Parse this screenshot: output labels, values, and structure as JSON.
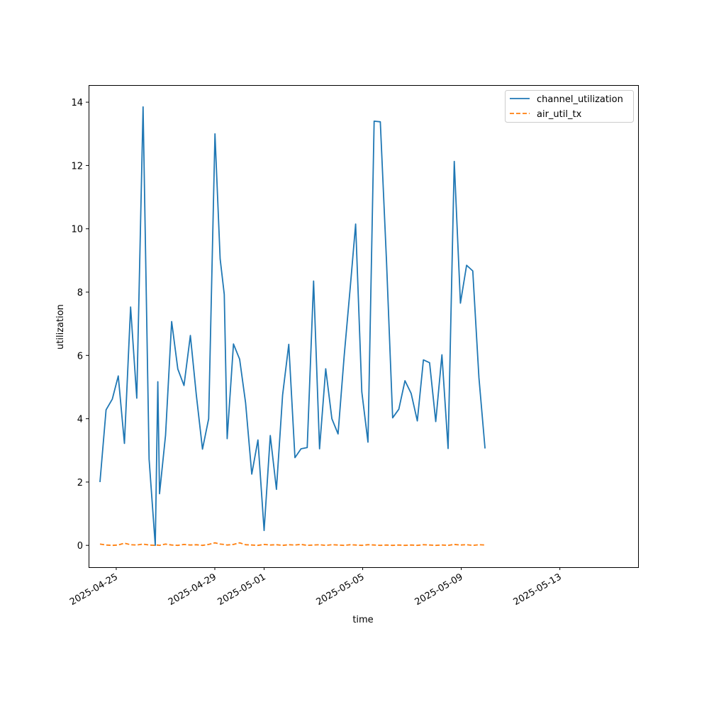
{
  "chart_data": {
    "type": "line",
    "xlabel": "time",
    "ylabel": "utilization",
    "xlim": [
      "2025-04-23T21:07",
      "2025-05-16T04:12"
    ],
    "ylim": [
      -0.69,
      14.54
    ],
    "yticks": [
      0,
      2,
      4,
      6,
      8,
      10,
      12,
      14
    ],
    "xticks": [
      "2025-04-25",
      "2025-04-29",
      "2025-05-01",
      "2025-05-05",
      "2025-05-09",
      "2025-05-13"
    ],
    "grid": false,
    "legend": "top-right",
    "series": [
      {
        "name": "channel_utilization",
        "color": "#1f77b4",
        "style": "solid",
        "points": [
          [
            "2025-04-24T08:10",
            2.0
          ],
          [
            "2025-04-24T14:05",
            4.28
          ],
          [
            "2025-04-24T20:10",
            4.62
          ],
          [
            "2025-04-25T02:00",
            5.35
          ],
          [
            "2025-04-25T08:00",
            3.22
          ],
          [
            "2025-04-25T14:00",
            7.53
          ],
          [
            "2025-04-25T20:00",
            4.65
          ],
          [
            "2025-04-26T02:10",
            13.85
          ],
          [
            "2025-04-26T08:00",
            2.72
          ],
          [
            "2025-04-26T14:00",
            0.0
          ],
          [
            "2025-04-26T16:30",
            5.17
          ],
          [
            "2025-04-26T18:10",
            1.63
          ],
          [
            "2025-04-27T00:00",
            3.48
          ],
          [
            "2025-04-27T06:00",
            7.07
          ],
          [
            "2025-04-27T12:00",
            5.57
          ],
          [
            "2025-04-27T18:00",
            5.05
          ],
          [
            "2025-04-28T00:10",
            6.63
          ],
          [
            "2025-04-28T06:00",
            4.75
          ],
          [
            "2025-04-28T12:00",
            3.04
          ],
          [
            "2025-04-28T18:00",
            4.0
          ],
          [
            "2025-04-29T00:10",
            13.0
          ],
          [
            "2025-04-29T05:10",
            9.05
          ],
          [
            "2025-04-29T09:10",
            7.93
          ],
          [
            "2025-04-29T12:00",
            3.37
          ],
          [
            "2025-04-29T18:10",
            6.36
          ],
          [
            "2025-04-30T00:10",
            5.88
          ],
          [
            "2025-04-30T06:00",
            4.5
          ],
          [
            "2025-04-30T12:00",
            2.25
          ],
          [
            "2025-04-30T18:00",
            3.33
          ],
          [
            "2025-05-01T00:00",
            0.47
          ],
          [
            "2025-05-01T06:00",
            3.47
          ],
          [
            "2025-05-01T12:00",
            1.77
          ],
          [
            "2025-05-01T18:00",
            4.75
          ],
          [
            "2025-05-02T00:00",
            6.35
          ],
          [
            "2025-05-02T06:00",
            2.77
          ],
          [
            "2025-05-02T12:00",
            3.05
          ],
          [
            "2025-05-02T18:00",
            3.09
          ],
          [
            "2025-05-03T00:10",
            8.35
          ],
          [
            "2025-05-03T06:00",
            3.05
          ],
          [
            "2025-05-03T12:00",
            5.58
          ],
          [
            "2025-05-03T18:00",
            4.0
          ],
          [
            "2025-05-04T00:00",
            3.52
          ],
          [
            "2025-05-04T06:00",
            6.0
          ],
          [
            "2025-05-04T12:00",
            8.2
          ],
          [
            "2025-05-04T17:10",
            10.15
          ],
          [
            "2025-05-04T23:10",
            4.85
          ],
          [
            "2025-05-05T05:10",
            3.26
          ],
          [
            "2025-05-05T11:10",
            13.4
          ],
          [
            "2025-05-05T17:10",
            13.38
          ],
          [
            "2025-05-05T23:10",
            9.0
          ],
          [
            "2025-05-06T05:10",
            4.03
          ],
          [
            "2025-05-06T11:10",
            4.3
          ],
          [
            "2025-05-06T17:10",
            5.2
          ],
          [
            "2025-05-06T23:10",
            4.8
          ],
          [
            "2025-05-07T05:10",
            3.93
          ],
          [
            "2025-05-07T11:10",
            5.86
          ],
          [
            "2025-05-07T17:10",
            5.77
          ],
          [
            "2025-05-07T23:10",
            3.91
          ],
          [
            "2025-05-08T05:10",
            6.02
          ],
          [
            "2025-05-08T11:10",
            3.06
          ],
          [
            "2025-05-08T17:10",
            12.13
          ],
          [
            "2025-05-08T23:10",
            7.65
          ],
          [
            "2025-05-09T05:10",
            8.85
          ],
          [
            "2025-05-09T11:10",
            8.67
          ],
          [
            "2025-05-09T17:10",
            5.3
          ],
          [
            "2025-05-09T23:10",
            3.06
          ]
        ]
      },
      {
        "name": "air_util_tx",
        "color": "#ff7f0e",
        "style": "dashed",
        "points": [
          [
            "2025-04-24T08:10",
            0.04
          ],
          [
            "2025-04-24T14:05",
            0.01
          ],
          [
            "2025-04-24T20:10",
            0.0
          ],
          [
            "2025-04-25T02:00",
            0.01
          ],
          [
            "2025-04-25T08:00",
            0.07
          ],
          [
            "2025-04-25T14:00",
            0.02
          ],
          [
            "2025-04-25T20:00",
            0.01
          ],
          [
            "2025-04-26T02:10",
            0.04
          ],
          [
            "2025-04-26T08:00",
            0.01
          ],
          [
            "2025-04-26T14:00",
            0.0
          ],
          [
            "2025-04-26T16:30",
            0.01
          ],
          [
            "2025-04-26T18:10",
            0.0
          ],
          [
            "2025-04-27T00:00",
            0.04
          ],
          [
            "2025-04-27T06:00",
            0.01
          ],
          [
            "2025-04-27T12:00",
            0.0
          ],
          [
            "2025-04-27T18:00",
            0.03
          ],
          [
            "2025-04-28T00:10",
            0.01
          ],
          [
            "2025-04-28T06:00",
            0.02
          ],
          [
            "2025-04-28T12:00",
            0.0
          ],
          [
            "2025-04-28T18:00",
            0.03
          ],
          [
            "2025-04-29T00:10",
            0.08
          ],
          [
            "2025-04-29T05:10",
            0.04
          ],
          [
            "2025-04-29T09:10",
            0.03
          ],
          [
            "2025-04-29T12:00",
            0.01
          ],
          [
            "2025-04-29T18:10",
            0.03
          ],
          [
            "2025-04-30T00:10",
            0.08
          ],
          [
            "2025-04-30T06:00",
            0.02
          ],
          [
            "2025-04-30T12:00",
            0.01
          ],
          [
            "2025-04-30T18:00",
            0.0
          ],
          [
            "2025-05-01T00:00",
            0.03
          ],
          [
            "2025-05-01T06:00",
            0.01
          ],
          [
            "2025-05-01T12:00",
            0.02
          ],
          [
            "2025-05-01T18:00",
            0.0
          ],
          [
            "2025-05-02T00:00",
            0.02
          ],
          [
            "2025-05-02T06:00",
            0.01
          ],
          [
            "2025-05-02T12:00",
            0.03
          ],
          [
            "2025-05-02T18:00",
            0.0
          ],
          [
            "2025-05-03T00:10",
            0.01
          ],
          [
            "2025-05-03T06:00",
            0.02
          ],
          [
            "2025-05-03T12:00",
            0.0
          ],
          [
            "2025-05-03T18:00",
            0.02
          ],
          [
            "2025-05-04T00:00",
            0.01
          ],
          [
            "2025-05-04T06:00",
            0.0
          ],
          [
            "2025-05-04T12:00",
            0.02
          ],
          [
            "2025-05-04T17:10",
            0.01
          ],
          [
            "2025-05-04T23:10",
            0.0
          ],
          [
            "2025-05-05T05:10",
            0.02
          ],
          [
            "2025-05-05T11:10",
            0.01
          ],
          [
            "2025-05-05T17:10",
            0.0
          ],
          [
            "2025-05-05T23:10",
            0.01
          ],
          [
            "2025-05-06T05:10",
            0.0
          ],
          [
            "2025-05-06T11:10",
            0.01
          ],
          [
            "2025-05-06T17:10",
            0.0
          ],
          [
            "2025-05-06T23:10",
            0.01
          ],
          [
            "2025-05-07T05:10",
            0.0
          ],
          [
            "2025-05-07T11:10",
            0.02
          ],
          [
            "2025-05-07T17:10",
            0.01
          ],
          [
            "2025-05-07T23:10",
            0.0
          ],
          [
            "2025-05-08T05:10",
            0.01
          ],
          [
            "2025-05-08T11:10",
            0.0
          ],
          [
            "2025-05-08T17:10",
            0.03
          ],
          [
            "2025-05-08T23:10",
            0.01
          ],
          [
            "2025-05-09T05:10",
            0.02
          ],
          [
            "2025-05-09T11:10",
            0.0
          ],
          [
            "2025-05-09T17:10",
            0.02
          ],
          [
            "2025-05-09T23:10",
            0.01
          ]
        ]
      }
    ]
  }
}
